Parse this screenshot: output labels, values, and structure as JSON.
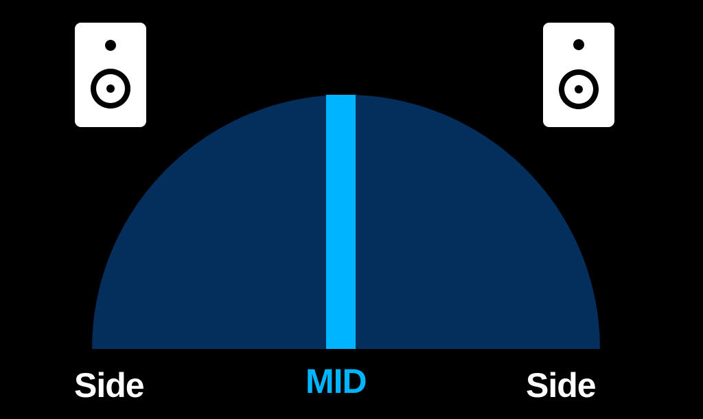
{
  "labels": {
    "left": "Side",
    "center": "MID",
    "right": "Side"
  },
  "icons": {
    "left_speaker": "speaker-icon",
    "right_speaker": "speaker-icon"
  },
  "colors": {
    "background": "#000000",
    "field": "#042e5c",
    "mid_band": "#00b4ff",
    "side_text": "#ffffff",
    "speaker_body": "#ffffff",
    "speaker_detail": "#000000"
  }
}
